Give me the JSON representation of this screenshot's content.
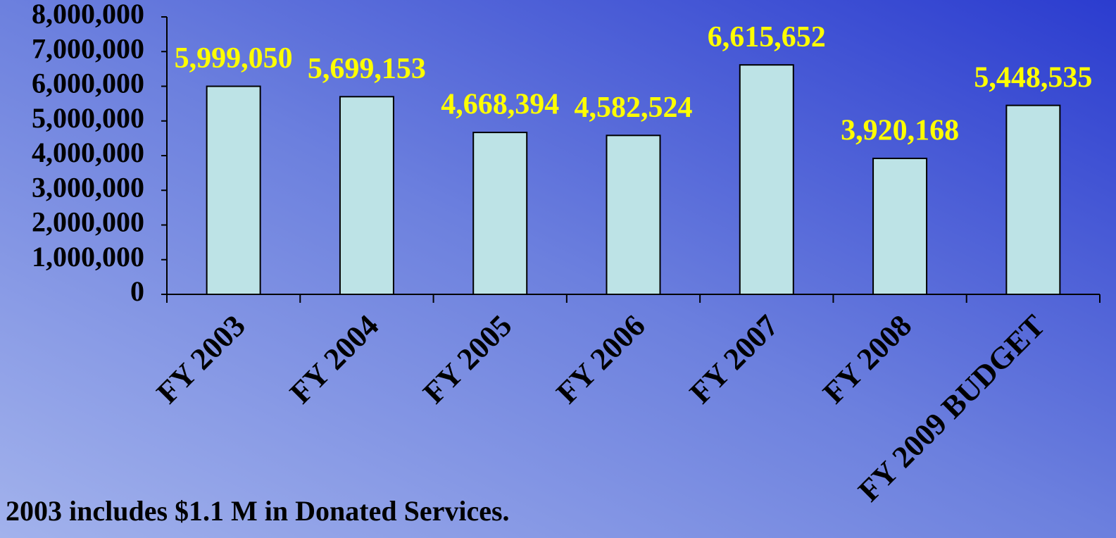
{
  "chart_data": {
    "type": "bar",
    "categories": [
      "FY 2003",
      "FY 2004",
      "FY 2005",
      "FY 2006",
      "FY 2007",
      "FY 2008",
      "FY 2009 BUDGET"
    ],
    "values": [
      5999050,
      5699153,
      4668394,
      4582524,
      6615652,
      3920168,
      5448535
    ],
    "value_labels": [
      "5,999,050",
      "5,699,153",
      "4,668,394",
      "4,582,524",
      "6,615,652",
      "3,920,168",
      "5,448,535"
    ],
    "color": "#bde3e6",
    "label_color": "#ffff00",
    "ylim": [
      0,
      8000000
    ],
    "yticks": [
      0,
      {
        "value": 1000000,
        "label": "1,000,000"
      },
      {
        "value": 2000000,
        "label": "2,000,000"
      },
      {
        "value": 3000000,
        "label": "3,000,000"
      },
      {
        "value": 4000000,
        "label": "4,000,000"
      },
      {
        "value": 5000000,
        "label": "5,000,000"
      },
      {
        "value": 6000000,
        "label": "6,000,000"
      },
      {
        "value": 7000000,
        "label": "7,000,000"
      },
      {
        "value": 8000000,
        "label": "8,000,000"
      }
    ],
    "grid": false,
    "annotation": "2003 includes $1.1 M in Donated Services."
  }
}
